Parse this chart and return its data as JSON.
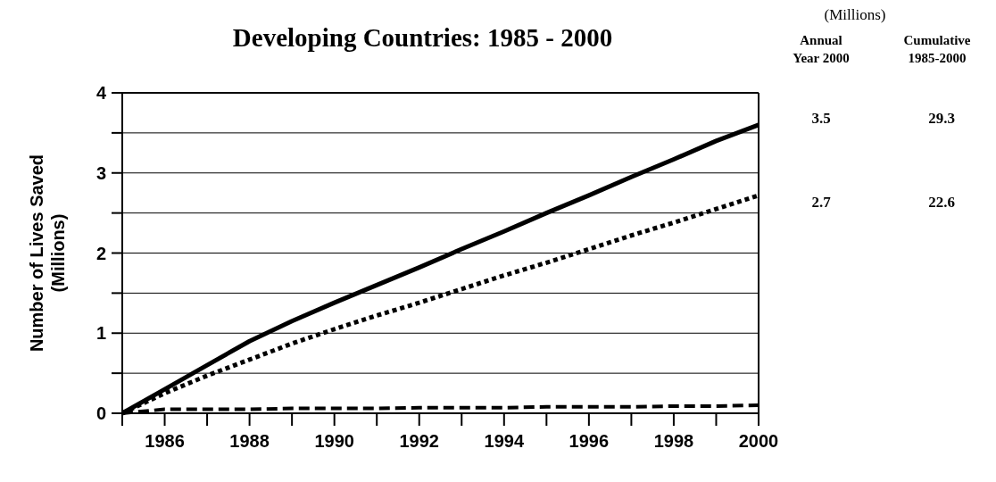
{
  "chart_data": {
    "type": "line",
    "title": "Developing Countries: 1985 - 2000",
    "ylabel": "Number of Lives Saved\n(Millions)",
    "x": [
      1985,
      1986,
      1987,
      1988,
      1989,
      1990,
      1991,
      1992,
      1993,
      1994,
      1995,
      1996,
      1997,
      1998,
      1999,
      2000
    ],
    "series": [
      {
        "color": "#000000",
        "line_style": "solid",
        "values": [
          0,
          0.3,
          0.6,
          0.9,
          1.15,
          1.38,
          1.6,
          1.82,
          2.05,
          2.27,
          2.5,
          2.72,
          2.95,
          3.17,
          3.4,
          3.6
        ]
      },
      {
        "color": "#000000",
        "line_style": "dotted",
        "values": [
          0,
          0.25,
          0.47,
          0.67,
          0.87,
          1.05,
          1.22,
          1.38,
          1.55,
          1.72,
          1.88,
          2.05,
          2.22,
          2.38,
          2.55,
          2.72
        ]
      },
      {
        "color": "#000000",
        "line_style": "dashed",
        "values": [
          0,
          0.05,
          0.05,
          0.05,
          0.06,
          0.06,
          0.06,
          0.07,
          0.07,
          0.07,
          0.08,
          0.08,
          0.08,
          0.09,
          0.09,
          0.1
        ]
      }
    ],
    "xlim": [
      1985,
      2000
    ],
    "xticks": [
      {
        "value": 1985,
        "label": null
      },
      1986,
      {
        "value": 1987,
        "label": null
      },
      1988,
      {
        "value": 1989,
        "label": null
      },
      1990,
      {
        "value": 1991,
        "label": null
      },
      1992,
      {
        "value": 1993,
        "label": null
      },
      1994,
      {
        "value": 1995,
        "label": null
      },
      1996,
      {
        "value": 1997,
        "label": null
      },
      1998,
      {
        "value": 1999,
        "label": null
      },
      2000
    ],
    "ylim": [
      0,
      4
    ],
    "yticks": [
      0,
      {
        "value": 0.5,
        "label": null
      },
      1,
      {
        "value": 1.5,
        "label": null
      },
      2,
      {
        "value": 2.5,
        "label": null
      },
      3,
      {
        "value": 3.5,
        "label": null
      },
      4
    ],
    "grid": "y",
    "annotations": [
      "(Millions)",
      "Annual\nYear 2000",
      "Cumulative\n1985-2000",
      "3.5",
      "29.3",
      "2.7",
      "22.6"
    ]
  }
}
